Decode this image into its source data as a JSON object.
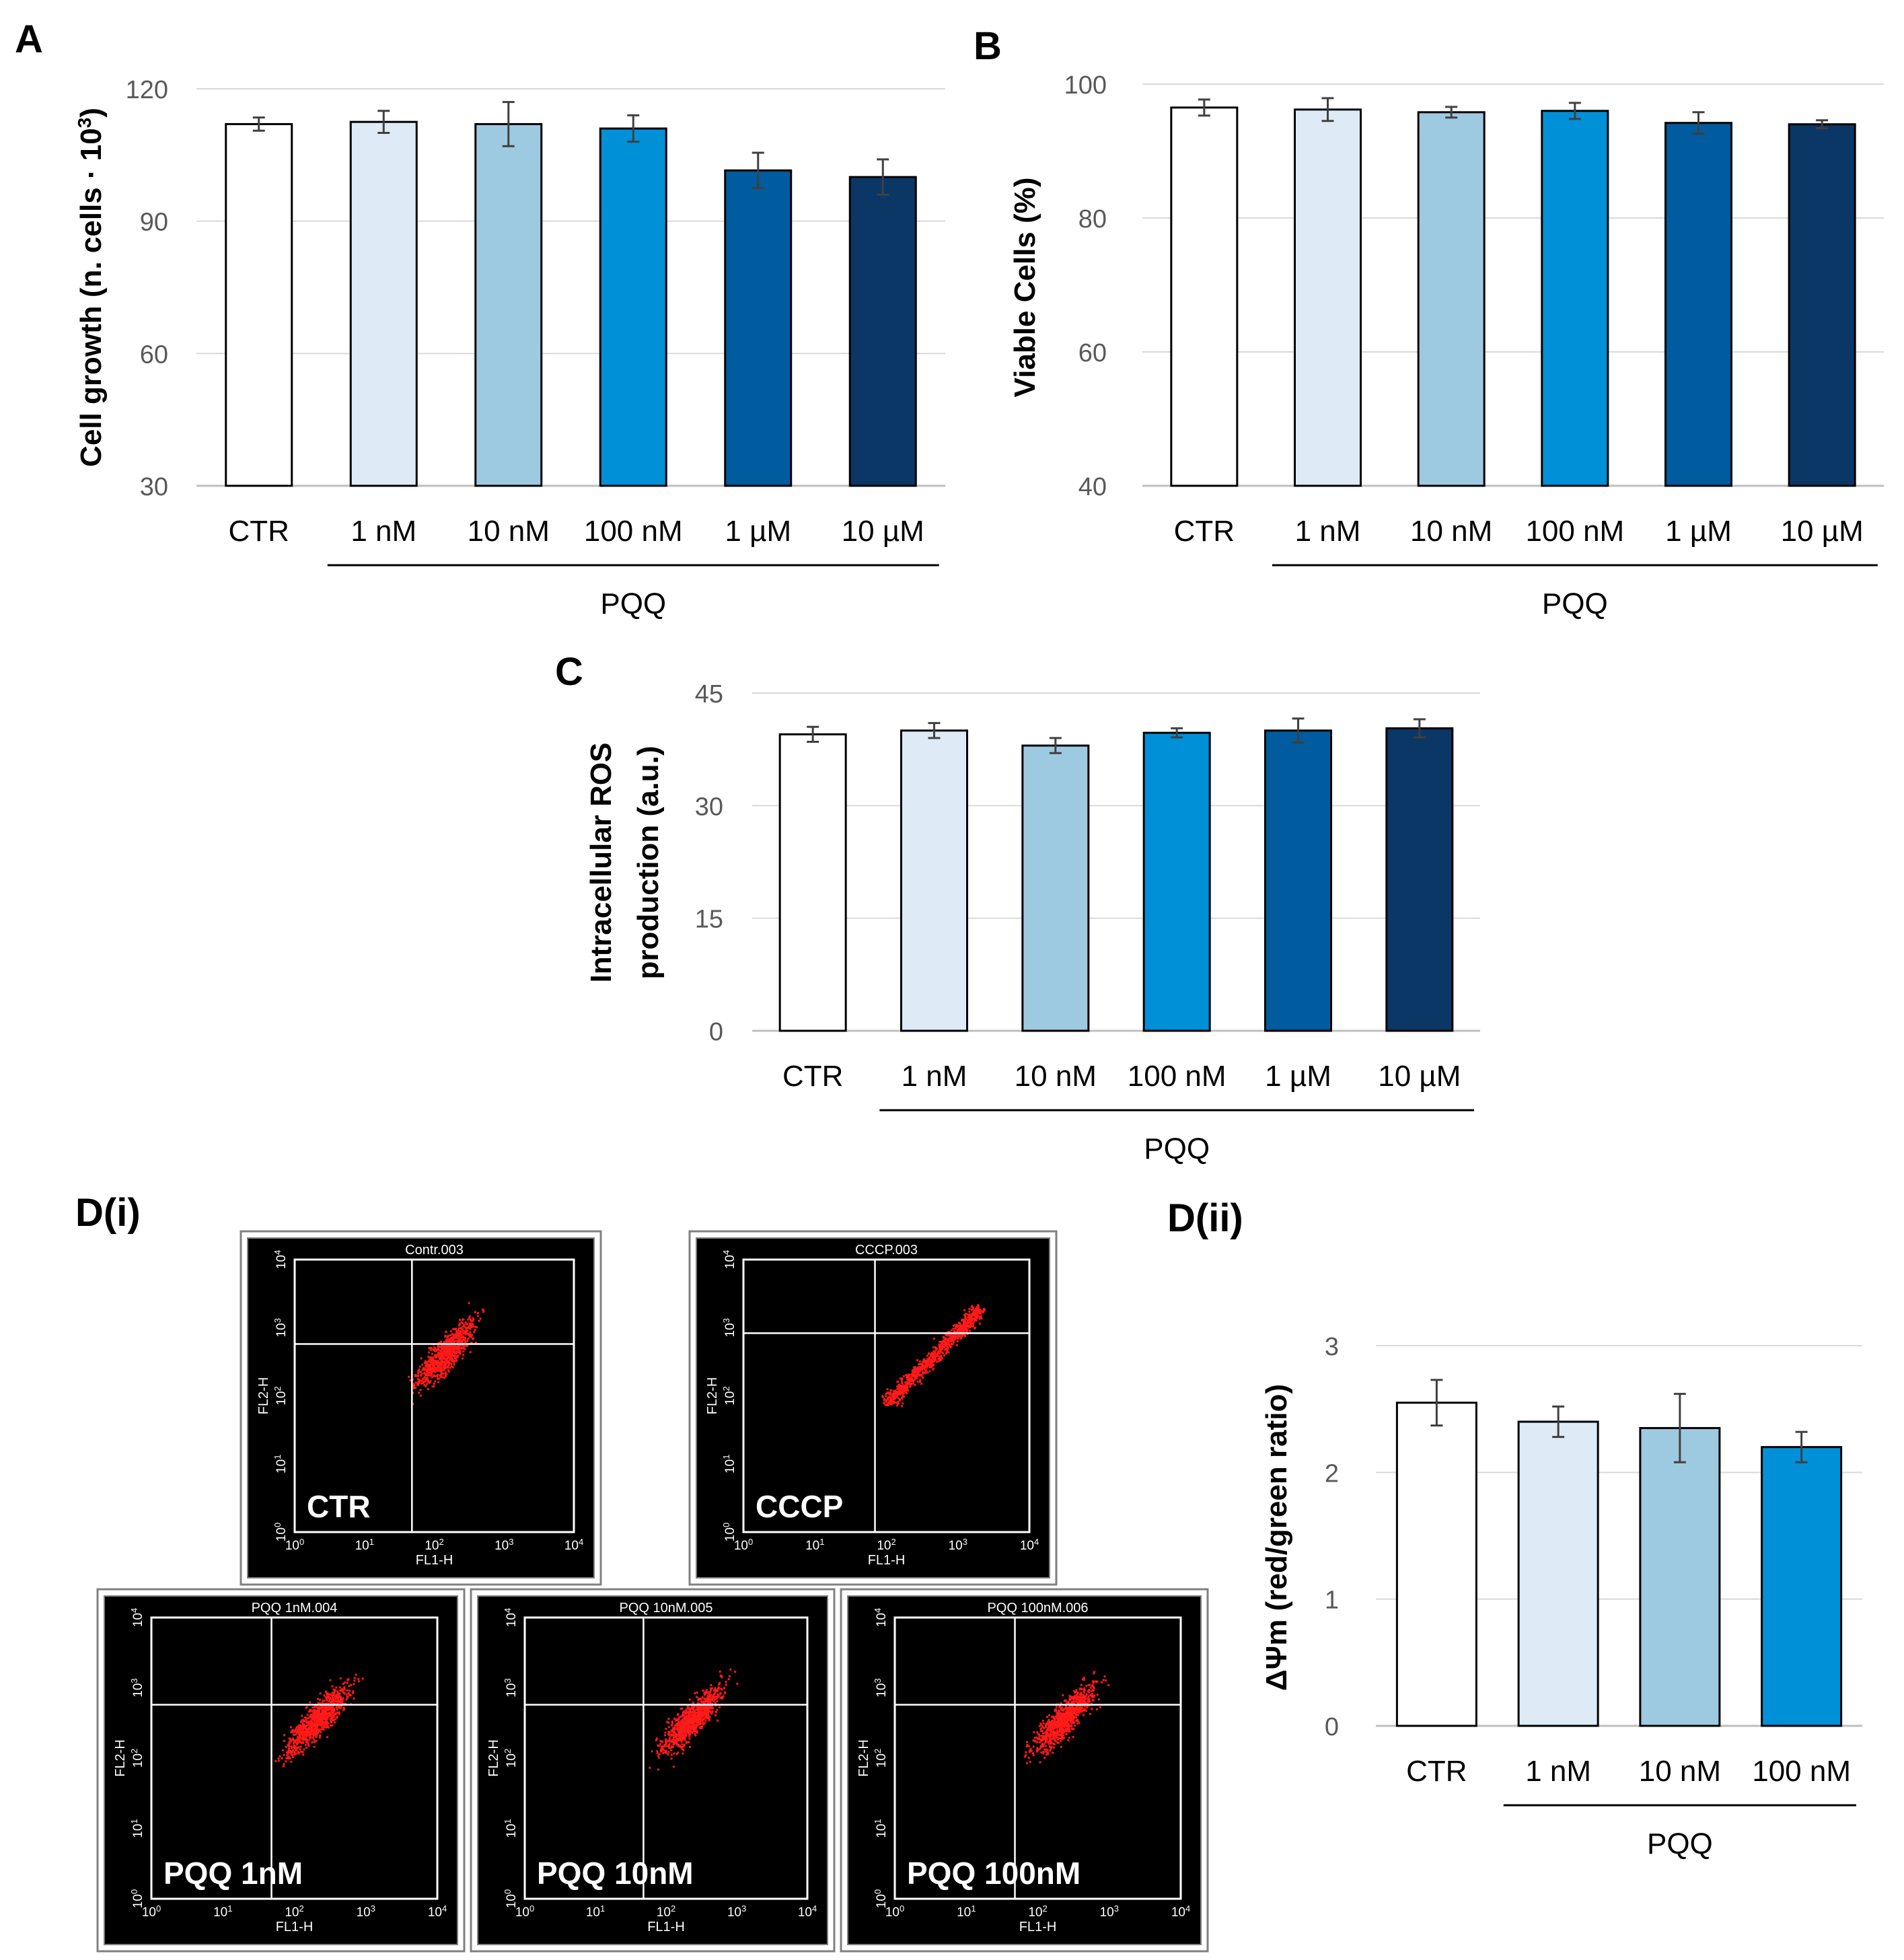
{
  "palette": [
    "#ffffff",
    "#deebf7",
    "#9ecae1",
    "#0090d8",
    "#005b9f",
    "#0a3766"
  ],
  "chart_data": [
    {
      "id": "A",
      "panel_label": "A",
      "type": "bar",
      "categories": [
        "CTR",
        "1 nM",
        "10 nM",
        "100 nM",
        "1 µM",
        "10 µM"
      ],
      "values": [
        112,
        112.5,
        112,
        111,
        101.5,
        100
      ],
      "errors": [
        1.5,
        2.5,
        5,
        3,
        4,
        4
      ],
      "ylim": [
        30,
        120
      ],
      "yticks": [
        30,
        60,
        90,
        120
      ],
      "ylabel_main": "Cell growth  (n. cells · 10",
      "ylabel_sup": "3",
      "ylabel_end": ")",
      "group_label": "PQQ",
      "group_start": 1,
      "group_end": 5
    },
    {
      "id": "B",
      "panel_label": "B",
      "type": "bar",
      "categories": [
        "CTR",
        "1 nM",
        "10 nM",
        "100 nM",
        "1 µM",
        "10 µM"
      ],
      "values": [
        96.5,
        96.2,
        95.8,
        96,
        94.2,
        94
      ],
      "errors": [
        1.2,
        1.7,
        0.8,
        1.2,
        1.6,
        0.6
      ],
      "ylim": [
        40,
        100
      ],
      "yticks": [
        40,
        60,
        80,
        100
      ],
      "ylabel_main": "Viable Cells (%)",
      "ylabel_sup": "",
      "ylabel_end": "",
      "group_label": "PQQ",
      "group_start": 1,
      "group_end": 5
    },
    {
      "id": "C",
      "panel_label": "C",
      "type": "bar",
      "categories": [
        "CTR",
        "1 nM",
        "10 nM",
        "100 nM",
        "1 µM",
        "10 µM"
      ],
      "values": [
        39.5,
        40,
        38,
        39.7,
        40,
        40.3
      ],
      "errors": [
        1,
        1,
        1,
        0.6,
        1.6,
        1.2
      ],
      "ylim": [
        0,
        45
      ],
      "yticks": [
        0,
        15,
        30,
        45
      ],
      "ylabel_line1": "Intracellular ROS",
      "ylabel_line2": "production (a.u.)",
      "group_label": "PQQ",
      "group_start": 1,
      "group_end": 5
    },
    {
      "id": "Dii",
      "panel_label": "D(ii)",
      "type": "bar",
      "categories": [
        "CTR",
        "1 nM",
        "10 nM",
        "100 nM"
      ],
      "values": [
        2.55,
        2.4,
        2.35,
        2.2
      ],
      "errors": [
        0.18,
        0.12,
        0.27,
        0.12
      ],
      "ylim": [
        0,
        3
      ],
      "yticks": [
        0,
        1,
        2,
        3
      ],
      "ylabel_main": "ΔΨm (red/green ratio)",
      "ylabel_sup": "",
      "ylabel_end": "",
      "group_label": "PQQ",
      "group_start": 1,
      "group_end": 3
    },
    {
      "id": "Di",
      "panel_label": "D(i)",
      "type": "scatter",
      "x_label": "FL1-H",
      "y_label": "FL2-H",
      "axis_ticks": [
        "10",
        "10",
        "10",
        "10",
        "10"
      ],
      "axis_exps": [
        "0",
        "1",
        "2",
        "3",
        "4"
      ],
      "plots": [
        {
          "title": "Contr.003",
          "sample": "CTR"
        },
        {
          "title": "CCCP.003",
          "sample": "CCCP"
        },
        {
          "title": "PQQ 1nM.004",
          "sample": "PQQ 1nM"
        },
        {
          "title": "PQQ 10nM.005",
          "sample": "PQQ 10nM"
        },
        {
          "title": "PQQ 100nM.006",
          "sample": "PQQ 100nM"
        }
      ]
    }
  ]
}
